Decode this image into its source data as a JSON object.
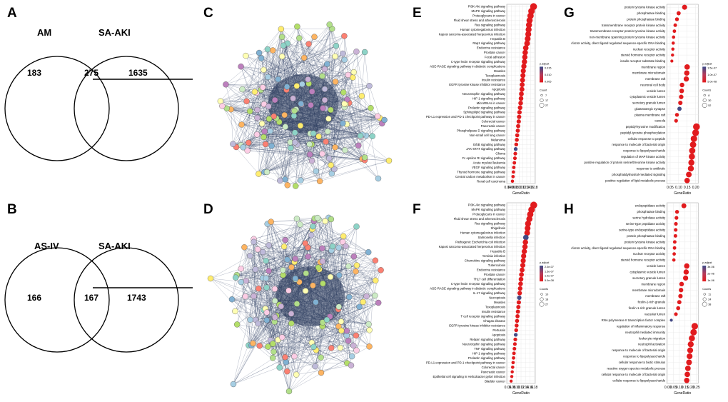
{
  "panels": {
    "A": "A",
    "B": "B",
    "C": "C",
    "D": "D",
    "E": "E",
    "F": "F",
    "G": "G",
    "H": "H"
  },
  "venn_a": {
    "left_label": "AM",
    "right_label": "SA-AKI",
    "left_only": "183",
    "overlap": "275",
    "right_only": "1635"
  },
  "venn_b": {
    "left_label": "AS-IV",
    "right_label": "SA-AKI",
    "left_only": "166",
    "overlap": "167",
    "right_only": "1743"
  },
  "colors": {
    "high": "#e41a1c",
    "low": "#3a4c8a",
    "mid": "#b43a5a",
    "edge": "#3b4a6b",
    "grid": "#e8e8e8"
  },
  "dotplots": [
    {
      "id": "E",
      "xlabel": "GeneRatio",
      "xticks": [
        "0.04",
        "0.06",
        "0.08",
        "0.10",
        "0.12",
        "0.14",
        "0.16",
        "0.18"
      ],
      "xrange": [
        0.035,
        0.185
      ],
      "legend_title": "p.adjust",
      "legend_values": [
        "0.015",
        "0.010",
        "0.005"
      ],
      "count_title": "Count",
      "count_values": [
        "7",
        "17",
        "27"
      ],
      "terms": [
        "PI3K-Akt signaling pathway",
        "MAPK signaling pathway",
        "Proteoglycans in cancer",
        "Fluid shear stress and atherosclerosis",
        "Ras signaling pathway",
        "Human cytomegalovirus infection",
        "Kaposi sarcoma-associated herpesvirus infection",
        "Hepatitis B",
        "Rap1 signaling pathway",
        "Endocrine resistance",
        "Prostate cancer",
        "Focal adhesion",
        "C-type lectin receptor signaling pathway",
        "AGE-RAGE signaling pathway in diabetic complications",
        "Measles",
        "Toxoplasmosis",
        "Insulin resistance",
        "EGFR tyrosine kinase inhibitor resistance",
        "Apoptosis",
        "Neurotrophin signaling pathway",
        "HIF-1 signaling pathway",
        "MicroRNAs in cancer",
        "Prolactin signaling pathway",
        "Sphingolipid signaling pathway",
        "PD-L1 expression and PD-1 checkpoint pathway in cancer",
        "Colorectal cancer",
        "Pancreatic cancer",
        "Phospholipase D signaling pathway",
        "Non-small cell lung cancer",
        "Melanoma",
        "ErbB signaling pathway",
        "JAK-STAT signaling pathway",
        "Glioma",
        "Fc epsilon RI signaling pathway",
        "Acute myeloid leukemia",
        "VEGF signaling pathway",
        "Thyroid hormone signaling pathway",
        "Central carbon metabolism in cancer",
        "Renal cell carcinoma"
      ],
      "ratios": [
        0.176,
        0.165,
        0.16,
        0.155,
        0.152,
        0.15,
        0.148,
        0.145,
        0.142,
        0.135,
        0.132,
        0.13,
        0.128,
        0.125,
        0.122,
        0.12,
        0.118,
        0.116,
        0.115,
        0.112,
        0.11,
        0.108,
        0.105,
        0.102,
        0.1,
        0.098,
        0.095,
        0.093,
        0.09,
        0.088,
        0.085,
        0.082,
        0.08,
        0.078,
        0.075,
        0.072,
        0.07,
        0.068,
        0.065
      ],
      "blues": [
        31
      ]
    },
    {
      "id": "F",
      "xlabel": "GeneRatio",
      "xticks": [
        "0.06",
        "0.08",
        "0.10",
        "0.12",
        "0.14",
        "0.16",
        "0.18"
      ],
      "xrange": [
        0.055,
        0.185
      ],
      "legend_title": "p.adjust",
      "legend_values": [
        "2.0e-07",
        "1.5e-07",
        "1.0e-07",
        "5.0e-08"
      ],
      "count_title": "Counts",
      "count_values": [
        "10",
        "18",
        "27"
      ],
      "terms": [
        "PI3K-Akt signaling pathway",
        "MAPK signaling pathway",
        "Proteoglycans in cancer",
        "Fluid shear stress and atherosclerosis",
        "Ras signaling pathway",
        "Shigellosis",
        "Human cytomegalovirus infection",
        "Salmonella infection",
        "Pathogenic Escherichia coli infection",
        "Kaposi sarcoma-associated herpesvirus infection",
        "Hepatitis B",
        "Yersinia infection",
        "Chemokine signaling pathway",
        "Tuberculosis",
        "Endocrine resistance",
        "Prostate cancer",
        "Th17 cell differentiation",
        "C-type lectin receptor signaling pathway",
        "AGE-RAGE signaling pathway in diabetic complications",
        "IL-17 signaling pathway",
        "Necroptosis",
        "Measles",
        "Toxoplasmosis",
        "Insulin resistance",
        "T cell receptor signaling pathway",
        "Chagas disease",
        "EGFR tyrosine kinase inhibitor resistance",
        "Pertussis",
        "Apoptosis",
        "Relaxin signaling pathway",
        "Neurotrophin signaling pathway",
        "TNF signaling pathway",
        "HIF-1 signaling pathway",
        "Prolactin signaling pathway",
        "PD-L1 expression and PD-1 checkpoint pathway in cancer",
        "Colorectal cancer",
        "Pancreatic cancer",
        "Epithelial cell signaling in Helicobacter pylori infection",
        "Bladder cancer"
      ],
      "ratios": [
        0.178,
        0.168,
        0.162,
        0.158,
        0.152,
        0.15,
        0.148,
        0.142,
        0.14,
        0.138,
        0.135,
        0.132,
        0.13,
        0.128,
        0.125,
        0.122,
        0.12,
        0.118,
        0.116,
        0.114,
        0.112,
        0.11,
        0.108,
        0.106,
        0.104,
        0.102,
        0.1,
        0.098,
        0.096,
        0.094,
        0.092,
        0.09,
        0.088,
        0.086,
        0.084,
        0.082,
        0.08,
        0.078,
        0.075
      ],
      "blues": [
        7,
        20,
        28
      ]
    },
    {
      "id": "G",
      "xlabel": "GeneRatio",
      "xticks": [
        "0.05",
        "0.10",
        "0.15",
        "0.20"
      ],
      "xrange": [
        0.03,
        0.215
      ],
      "legend_title": "p.adjust",
      "legend_values": [
        "1.5e-07",
        "1.0e-07",
        "5.0e-08"
      ],
      "count_title": "Counts",
      "count_values": [
        "8",
        "30",
        "52"
      ],
      "terms": [
        "protein tyrosine kinase activity",
        "phosphatase binding",
        "protein phosphatase binding",
        "transmembrane receptor protein kinase activity",
        "transmembrane receptor protein tyrosine kinase activity",
        "non-membrane spanning protein tyrosine kinase activity",
        "transcription factor activity, direct ligand regulated sequence-specific DNA binding",
        "nuclear receptor activity",
        "steroid hormone receptor activity",
        "insulin receptor substrate binding",
        "membrane region",
        "membrane microdomain",
        "membrane raft",
        "neuronal cell body",
        "vesicle lumen",
        "cytoplasmic vesicle lumen",
        "secretory granule lumen",
        "glutamatergic synapse",
        "plasma membrane raft",
        "caveola",
        "peptidyl-tyrosine modification",
        "peptidyl-tyrosine phosphorylation",
        "cellular response to peptide",
        "response to molecule of bacterial origin",
        "response to lipopolysaccharide",
        "regulation of MAP kinase activity",
        "positive regulation of protein serine/threonine kinase activity",
        "response to antibiotic",
        "phosphatidylinositol-mediated signaling",
        "positive regulation of lipid metabolic process"
      ],
      "ratios": [
        0.135,
        0.1,
        0.09,
        0.08,
        0.075,
        0.07,
        0.068,
        0.066,
        0.064,
        0.06,
        0.15,
        0.148,
        0.145,
        0.12,
        0.118,
        0.115,
        0.11,
        0.105,
        0.09,
        0.085,
        0.205,
        0.2,
        0.19,
        0.185,
        0.18,
        0.178,
        0.175,
        0.172,
        0.16,
        0.15
      ],
      "blues": [
        17
      ]
    },
    {
      "id": "H",
      "xlabel": "GeneRatio",
      "xticks": [
        "0.00",
        "0.05",
        "0.10",
        "0.15",
        "0.20",
        "0.25"
      ],
      "xrange": [
        -0.01,
        0.265
      ],
      "legend_title": "p.adjust",
      "legend_values": [
        "3e-06",
        "2e-06",
        "1e-06"
      ],
      "count_title": "Counts",
      "count_values": [
        "11",
        "24",
        "38"
      ],
      "terms": [
        "endopeptidase activity",
        "phosphatase binding",
        "serine hydrolase activity",
        "serine-type peptidase activity",
        "serine-type endopeptidase activity",
        "protein phosphatase binding",
        "protein tyrosine kinase activity",
        "transcription factor activity, direct ligand regulated sequence-specific DNA binding",
        "nuclear receptor activity",
        "steroid hormone receptor activity",
        "vesicle lumen",
        "cytoplasmic vesicle lumen",
        "secretory granule lumen",
        "membrane region",
        "membrane microdomain",
        "membrane raft",
        "ficolin-1-rich granule",
        "ficolin-1-rich granule lumen",
        "vacuolar lumen",
        "RNA polymerase II transcription factor complex",
        "regulation of inflammatory response",
        "neutrophil mediated immunity",
        "leukocyte migration",
        "neutrophil activation",
        "response to molecule of bacterial origin",
        "response to lipopolysaccharide",
        "cellular response to biotic stimulus",
        "reactive oxygen species metabolic process",
        "cellular response to molecule of bacterial origin",
        "cellular response to lipopolysaccharide"
      ],
      "ratios": [
        0.14,
        0.08,
        0.075,
        0.07,
        0.068,
        0.066,
        0.06,
        0.058,
        0.055,
        0.052,
        0.165,
        0.16,
        0.155,
        0.12,
        0.115,
        0.11,
        0.1,
        0.09,
        0.07,
        0.03,
        0.235,
        0.225,
        0.21,
        0.2,
        0.195,
        0.19,
        0.185,
        0.175,
        0.17,
        0.165
      ],
      "blues": [
        19
      ]
    }
  ]
}
